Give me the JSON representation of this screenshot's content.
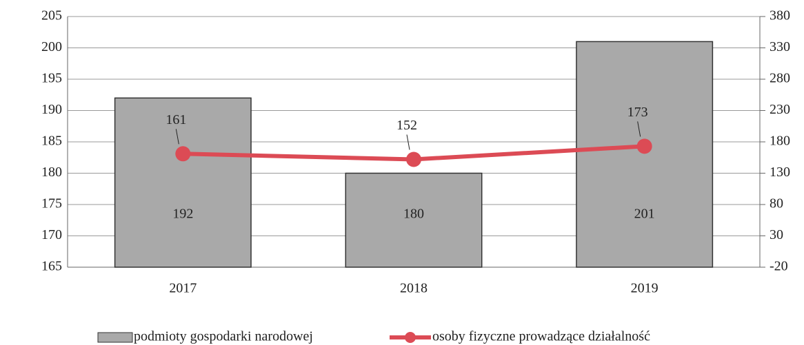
{
  "chart_data": {
    "type": "bar",
    "categories": [
      "2017",
      "2018",
      "2019"
    ],
    "series": [
      {
        "name": "podmioty gospodarki narodowej",
        "type": "bar",
        "color": "#a9a9a9",
        "values": [
          192,
          180,
          201
        ]
      },
      {
        "name": "osoby fizyczne prowadzące działalność",
        "type": "line",
        "color": "#dc4b55",
        "axis": "y2",
        "values": [
          161,
          152,
          173
        ]
      }
    ],
    "ylim": [
      165,
      205
    ],
    "yticks": [
      165,
      170,
      175,
      180,
      185,
      190,
      195,
      200,
      205
    ],
    "y2lim": [
      -20,
      380
    ],
    "y2ticks": [
      -20,
      30,
      80,
      130,
      180,
      230,
      280,
      330,
      380
    ],
    "grid": true,
    "legend": "bottom"
  }
}
